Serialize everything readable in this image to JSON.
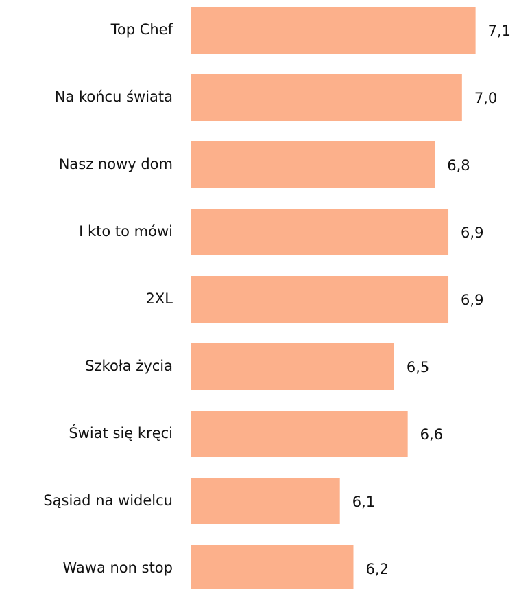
{
  "chart_data": {
    "type": "barh",
    "categories": [
      "Top Chef",
      "Na końcu świata",
      "Nasz nowy dom",
      "I kto to mówi",
      "2XL",
      "Szkoła życia",
      "Świat się kręci",
      "Sąsiad na widelcu",
      "Wawa non stop"
    ],
    "values": [
      7.1,
      7.0,
      6.8,
      6.9,
      6.9,
      6.5,
      6.6,
      6.1,
      6.2
    ],
    "value_labels": [
      "7,1",
      "7,0",
      "6,8",
      "6,9",
      "6,9",
      "6,5",
      "6,6",
      "6,1",
      "6,2"
    ],
    "color": "#fcb08b",
    "xlim": [
      5,
      7.4
    ]
  }
}
